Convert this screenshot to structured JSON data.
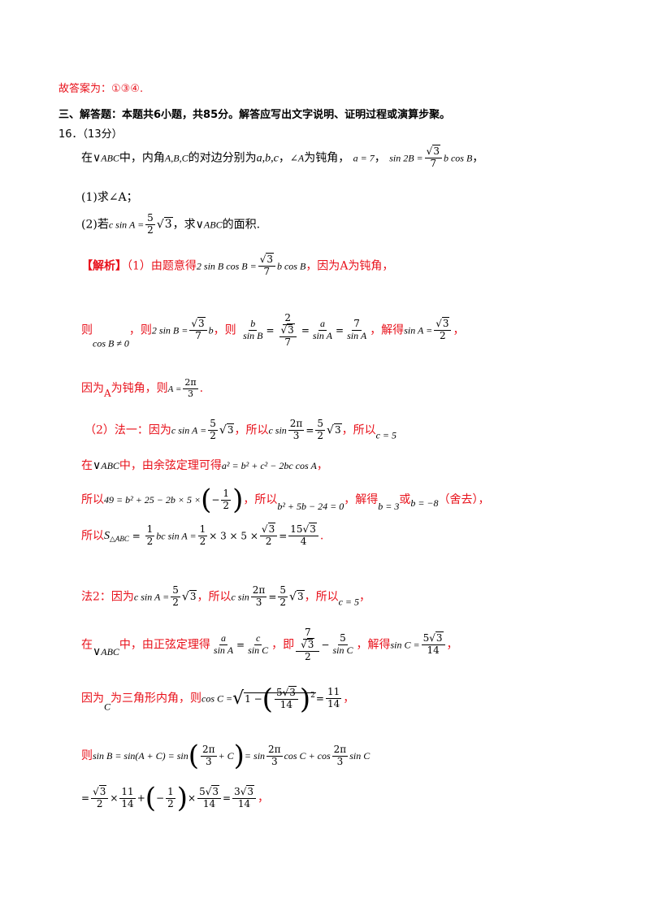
{
  "line1": "故答案为：①③④.",
  "section": "三、解答题：本题共6小题，共85分。解答应写出文字说明、证明过程或演算步聚。",
  "qnum": "16．（13分）",
  "q_a": "在",
  "q_b": "中，内角",
  "q_c": "的对边分别为",
  "q_d": "，",
  "q_e": "为钝角，",
  "q_f": "，",
  "q_g": "，",
  "part1": "(1)求∠A；",
  "part2a": "(2)若",
  "part2b": "，求",
  "part2c": "的面积.",
  "jiexi": "【解析】",
  "s1a": "（1）由题意得",
  "s1b": "，因为",
  "s1c": "A",
  "s1d": "为钝角，",
  "s2a": "则",
  "s2b": "，则",
  "s2c": "，则",
  "s2d": "，解得",
  "s2e": "，",
  "s3a": "因为",
  "s3b": "为钝角，则",
  "s3c": ".",
  "m1a": "（2）法一：因为",
  "m1b": "，所以",
  "m1c": "，所以",
  "m2a": "在",
  "m2b": "中，由余弦定理可得",
  "m2c": "，",
  "m3a": "所以",
  "m3b": "，所以",
  "m3c": "，解得",
  "m3d": "或",
  "m3e": "（舍去），",
  "m4a": "所以",
  "m4b": ".",
  "f1a": "法2：因为",
  "f1b": "，所以",
  "f1c": "，所以",
  "f1d": "，",
  "f2a": "在",
  "f2b": "中，由正弦定理得",
  "f2c": "，即",
  "f2d": "，解得",
  "f2e": "，",
  "f3a": "因为",
  "f3b": "为三角形内角，则",
  "f3c": "，",
  "f4a": "则",
  "f5a": "，",
  "sym": {
    "abc": "ABC",
    "abc_list": "A,B,C",
    "sides": "a,b,c",
    "angleA": "∠A",
    "a_eq": "a = 7",
    "sin2B": "sin 2B =",
    "sqrt3": "3",
    "seven": "7",
    "bcosB": "b cos B",
    "two_sinBcosB": "2 sin B cos B =",
    "cosB_ne0": "cos B ≠ 0",
    "two_sinB": "2 sin B =",
    "b": "b",
    "sinB": "sin B",
    "two": "2",
    "a": "a",
    "sinA": "sin A",
    "sinA_eq": "sin A =",
    "A_eq": "A =",
    "two_pi": "2π",
    "three": "3",
    "csinA_eq": "c sin A =",
    "five": "5",
    "csin": "c sin",
    "eq": "=",
    "c_eq5": "c = 5",
    "cosine_law": "a² = b² + c² − 2bc cos A",
    "m3_left": "49 = b² + 25 − 2b × 5 ×",
    "one": "1",
    "quad": "b² + 5b − 24 = 0",
    "b3": "b = 3",
    "bm8": "b = −8",
    "S": "S",
    "S_sub": "△ABC",
    "half_bc": "bc sin A =",
    "three_x5": "× 3 × 5 ×",
    "fifteen_sqrt3": "15",
    "four": "4",
    "c": "c",
    "sinC": "sin C",
    "sinC_eq": "sin C =",
    "fourteen": "14",
    "five_sqrt3": "5",
    "C": "C",
    "cosC_eq": "cos C =",
    "one_minus": "1 −",
    "eleven": "11",
    "sinB_eq": "sin B = sin(A + C) = sin",
    "plusC": "+ C",
    "eq_sin": "= sin",
    "cosC_plus_cos": "cos C + cos",
    "sinC_tail": "sin C",
    "times": "×",
    "plus": "+",
    "three_sqrt3": "3",
    "minus_one": "−1",
    "sq": "2"
  }
}
